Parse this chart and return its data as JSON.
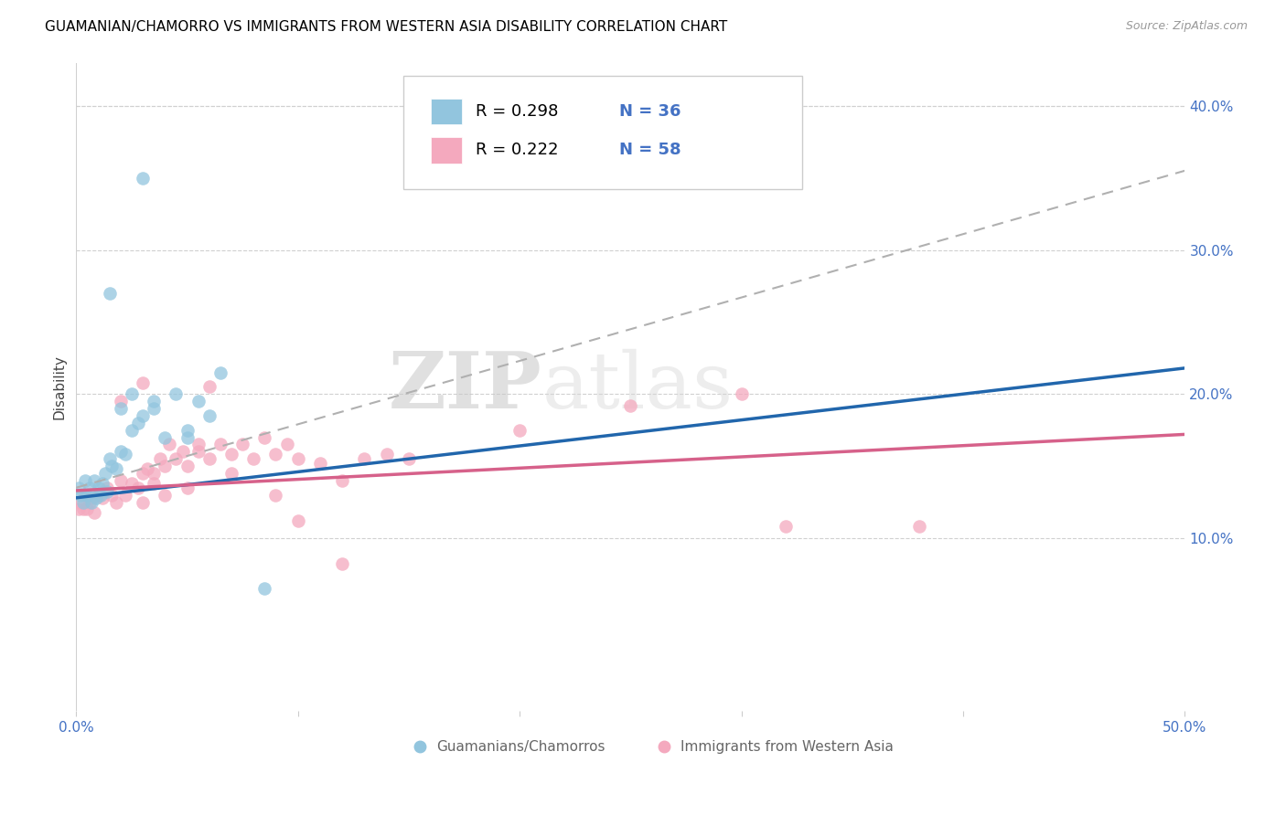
{
  "title": "GUAMANIAN/CHAMORRO VS IMMIGRANTS FROM WESTERN ASIA DISABILITY CORRELATION CHART",
  "source": "Source: ZipAtlas.com",
  "ylabel": "Disability",
  "xlim": [
    0.0,
    0.5
  ],
  "ylim": [
    -0.02,
    0.43
  ],
  "xticks": [
    0.0,
    0.1,
    0.2,
    0.3,
    0.4,
    0.5
  ],
  "xticklabels": [
    "0.0%",
    "",
    "",
    "",
    "",
    "50.0%"
  ],
  "yticks": [
    0.1,
    0.2,
    0.3,
    0.4
  ],
  "yticklabels": [
    "10.0%",
    "20.0%",
    "30.0%",
    "40.0%"
  ],
  "blue_color": "#92c5de",
  "pink_color": "#f4a9be",
  "blue_line_color": "#2166ac",
  "pink_line_color": "#d6618a",
  "dashed_line_color": "#b0b0b0",
  "legend_R1": "R = 0.298",
  "legend_N1": "N = 36",
  "legend_R2": "R = 0.222",
  "legend_N2": "N = 58",
  "label1": "Guamanians/Chamorros",
  "label2": "Immigrants from Western Asia",
  "watermark_zip": "ZIP",
  "watermark_atlas": "atlas",
  "blue_line_x0": 0.0,
  "blue_line_y0": 0.128,
  "blue_line_x1": 0.5,
  "blue_line_y1": 0.218,
  "dashed_line_x0": 0.0,
  "dashed_line_y0": 0.135,
  "dashed_line_x1": 0.5,
  "dashed_line_y1": 0.355,
  "pink_line_x0": 0.0,
  "pink_line_y0": 0.133,
  "pink_line_x1": 0.5,
  "pink_line_y1": 0.172,
  "blue_points_x": [
    0.001,
    0.002,
    0.003,
    0.004,
    0.005,
    0.006,
    0.007,
    0.008,
    0.009,
    0.01,
    0.011,
    0.012,
    0.013,
    0.014,
    0.015,
    0.016,
    0.018,
    0.02,
    0.022,
    0.025,
    0.028,
    0.03,
    0.035,
    0.04,
    0.045,
    0.05,
    0.055,
    0.06,
    0.065,
    0.02,
    0.025,
    0.035,
    0.05,
    0.015,
    0.085,
    0.03
  ],
  "blue_points_y": [
    0.135,
    0.13,
    0.125,
    0.14,
    0.13,
    0.135,
    0.125,
    0.14,
    0.128,
    0.135,
    0.13,
    0.138,
    0.145,
    0.132,
    0.155,
    0.15,
    0.148,
    0.16,
    0.158,
    0.175,
    0.18,
    0.185,
    0.19,
    0.17,
    0.2,
    0.17,
    0.195,
    0.185,
    0.215,
    0.19,
    0.2,
    0.195,
    0.175,
    0.27,
    0.065,
    0.35
  ],
  "pink_points_x": [
    0.001,
    0.002,
    0.003,
    0.004,
    0.005,
    0.006,
    0.007,
    0.008,
    0.01,
    0.012,
    0.014,
    0.016,
    0.018,
    0.02,
    0.022,
    0.025,
    0.028,
    0.03,
    0.032,
    0.035,
    0.038,
    0.04,
    0.042,
    0.045,
    0.048,
    0.05,
    0.055,
    0.06,
    0.065,
    0.07,
    0.075,
    0.08,
    0.085,
    0.09,
    0.095,
    0.1,
    0.11,
    0.12,
    0.13,
    0.14,
    0.15,
    0.2,
    0.25,
    0.3,
    0.32,
    0.38,
    0.02,
    0.03,
    0.03,
    0.035,
    0.04,
    0.05,
    0.055,
    0.06,
    0.07,
    0.09,
    0.1,
    0.12
  ],
  "pink_points_y": [
    0.12,
    0.125,
    0.12,
    0.13,
    0.12,
    0.125,
    0.128,
    0.118,
    0.13,
    0.128,
    0.135,
    0.13,
    0.125,
    0.14,
    0.13,
    0.138,
    0.135,
    0.145,
    0.148,
    0.145,
    0.155,
    0.15,
    0.165,
    0.155,
    0.16,
    0.15,
    0.16,
    0.155,
    0.165,
    0.158,
    0.165,
    0.155,
    0.17,
    0.158,
    0.165,
    0.155,
    0.152,
    0.14,
    0.155,
    0.158,
    0.155,
    0.175,
    0.192,
    0.2,
    0.108,
    0.108,
    0.195,
    0.208,
    0.125,
    0.138,
    0.13,
    0.135,
    0.165,
    0.205,
    0.145,
    0.13,
    0.112,
    0.082
  ]
}
